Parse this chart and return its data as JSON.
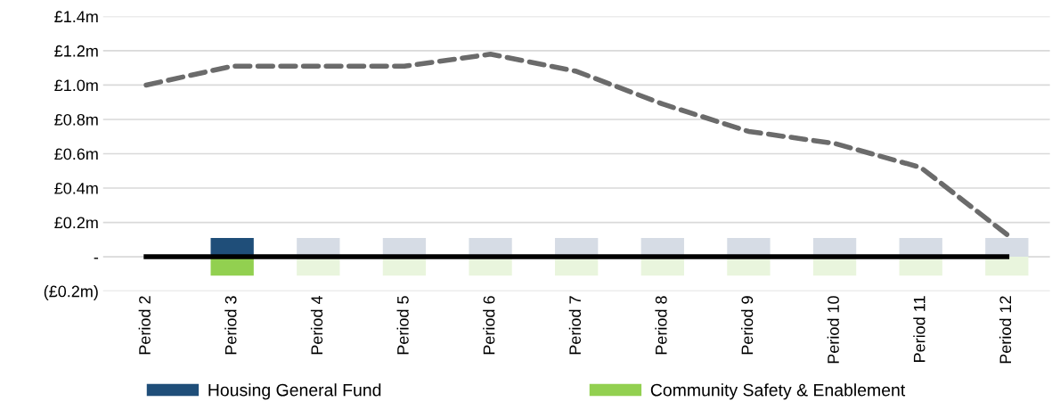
{
  "chart_data": {
    "type": "bar",
    "stacked": true,
    "categories": [
      "Period 2",
      "Period 3",
      "Period 4",
      "Period 5",
      "Period 6",
      "Period 7",
      "Period 8",
      "Period 9",
      "Period 10",
      "Period 11",
      "Period 12"
    ],
    "series": [
      {
        "name": "Housing General Fund",
        "color": "#1f4e79",
        "values": [
          null,
          0.11,
          null,
          null,
          null,
          null,
          null,
          null,
          null,
          null,
          null
        ]
      },
      {
        "name": "Community Safety & Enablement",
        "color": "#92d050",
        "values": [
          null,
          -0.11,
          null,
          null,
          null,
          null,
          null,
          null,
          null,
          null,
          null
        ]
      },
      {
        "color": "#d6dce5",
        "values": [
          null,
          null,
          0.11,
          0.11,
          0.11,
          0.11,
          0.11,
          0.11,
          0.11,
          0.11,
          0.11
        ]
      },
      {
        "color": "#e9f5dd",
        "values": [
          null,
          null,
          -0.11,
          -0.11,
          -0.11,
          -0.11,
          -0.11,
          -0.11,
          -0.11,
          -0.11,
          -0.11
        ]
      },
      {
        "type": "line",
        "color": "#000000",
        "line_style": "solid",
        "values": [
          0,
          0,
          0,
          0,
          0,
          0,
          0,
          0,
          0,
          0,
          0
        ]
      },
      {
        "type": "line",
        "color": "#6b6b6b",
        "line_style": "dashed",
        "values": [
          1.0,
          1.11,
          1.11,
          1.11,
          1.18,
          1.08,
          0.89,
          0.73,
          0.66,
          0.52,
          0.13
        ]
      }
    ],
    "ylim": [
      -0.2,
      1.4
    ],
    "yticks": [
      {
        "value": -0.2,
        "label": "(£0.2m)"
      },
      {
        "value": 0,
        "label": "-"
      },
      {
        "value": 0.2,
        "label": "£0.2m"
      },
      {
        "value": 0.4,
        "label": "£0.4m"
      },
      {
        "value": 0.6,
        "label": "£0.6m"
      },
      {
        "value": 0.8,
        "label": "£0.8m"
      },
      {
        "value": 1.0,
        "label": "£1.0m"
      },
      {
        "value": 1.2,
        "label": "£1.2m"
      },
      {
        "value": 1.4,
        "label": "£1.4m"
      }
    ],
    "grid": "y",
    "legend": "bottom"
  }
}
